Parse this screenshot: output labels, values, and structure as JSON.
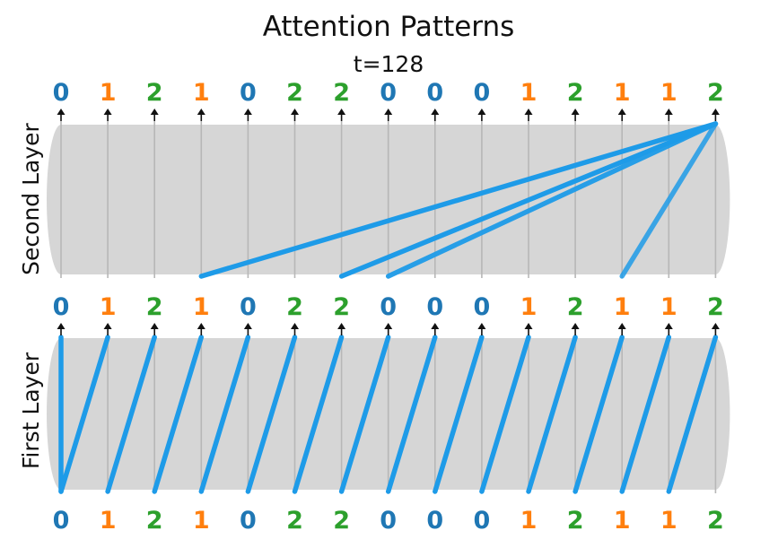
{
  "title": "Attention Patterns",
  "subtitle": "t=128",
  "tokens": [
    "0",
    "1",
    "2",
    "1",
    "0",
    "2",
    "2",
    "0",
    "0",
    "0",
    "1",
    "2",
    "1",
    "1",
    "2"
  ],
  "token_colors": {
    "0": "#1f77b4",
    "1": "#ff7f0e",
    "2": "#2ca02c"
  },
  "colors": {
    "panel": "#d6d6d6",
    "vertical_guide": "#b7b7b7",
    "attention": "#1e9be8",
    "arrow": "#111111"
  },
  "layers": [
    {
      "id": "second",
      "label": "Second Layer",
      "edges": [
        {
          "from": 3,
          "to": 14,
          "weight": 1.0
        },
        {
          "from": 6,
          "to": 14,
          "weight": 1.0
        },
        {
          "from": 7,
          "to": 14,
          "weight": 0.95
        },
        {
          "from": 12,
          "to": 14,
          "weight": 0.85
        }
      ]
    },
    {
      "id": "first",
      "label": "First Layer",
      "edges": [
        {
          "from": 0,
          "to": 0,
          "weight": 1.0
        },
        {
          "from": 0,
          "to": 1,
          "weight": 1.0
        },
        {
          "from": 1,
          "to": 2,
          "weight": 1.0
        },
        {
          "from": 2,
          "to": 3,
          "weight": 1.0
        },
        {
          "from": 3,
          "to": 4,
          "weight": 1.0
        },
        {
          "from": 4,
          "to": 5,
          "weight": 1.0
        },
        {
          "from": 5,
          "to": 6,
          "weight": 1.0
        },
        {
          "from": 6,
          "to": 7,
          "weight": 1.0
        },
        {
          "from": 7,
          "to": 8,
          "weight": 1.0
        },
        {
          "from": 8,
          "to": 9,
          "weight": 1.0
        },
        {
          "from": 9,
          "to": 10,
          "weight": 1.0
        },
        {
          "from": 10,
          "to": 11,
          "weight": 1.0
        },
        {
          "from": 11,
          "to": 12,
          "weight": 1.0
        },
        {
          "from": 12,
          "to": 13,
          "weight": 1.0
        },
        {
          "from": 13,
          "to": 14,
          "weight": 1.0
        }
      ]
    }
  ]
}
